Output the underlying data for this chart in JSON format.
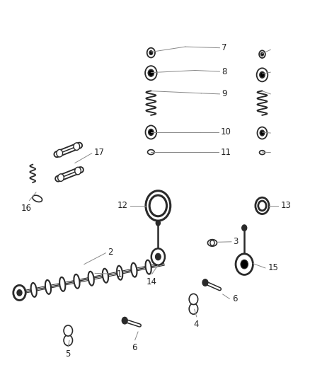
{
  "bg_color": "#ffffff",
  "line_color": "#888888",
  "part_color": "#2a2a2a",
  "label_color": "#222222",
  "label_fontsize": 8.5,
  "fig_width": 4.38,
  "fig_height": 5.33
}
